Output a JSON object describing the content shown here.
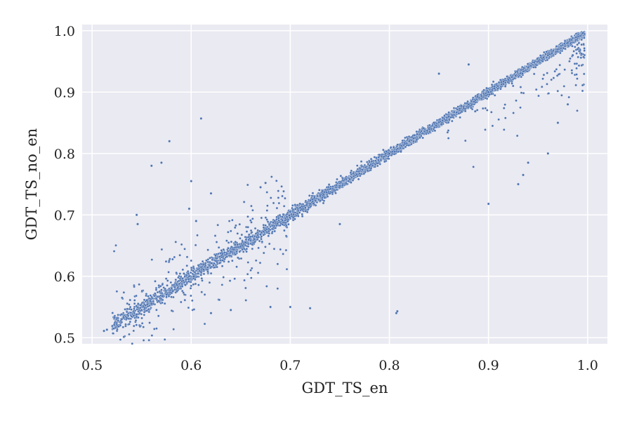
{
  "chart_data": {
    "type": "scatter",
    "title": "",
    "xlabel": "GDT_TS_en",
    "ylabel": "GDT_TS_no_en",
    "xlim": [
      0.49,
      1.02
    ],
    "ylim": [
      0.49,
      1.01
    ],
    "x_ticks": [
      "0.5",
      "0.6",
      "0.7",
      "0.8",
      "0.9",
      "1.0"
    ],
    "y_ticks": [
      "0.5",
      "0.6",
      "0.7",
      "0.8",
      "0.9",
      "1.0"
    ],
    "grid": true,
    "legend": "none",
    "background_color": "#eaeaf2",
    "point_color": "#4c72b0",
    "point_count_estimate": 6000,
    "series": [
      {
        "points": [
          [
            0.512,
            0.511
          ],
          [
            0.515,
            0.513
          ],
          [
            0.53,
            0.53
          ],
          [
            0.535,
            0.532
          ],
          [
            0.545,
            0.538
          ],
          [
            0.55,
            0.545
          ],
          [
            0.56,
            0.555
          ],
          [
            0.575,
            0.57
          ],
          [
            0.598,
            0.6
          ],
          [
            0.61,
            0.607
          ],
          [
            0.625,
            0.625
          ],
          [
            0.64,
            0.64
          ],
          [
            0.655,
            0.655
          ],
          [
            0.67,
            0.668
          ],
          [
            0.7,
            0.705
          ],
          [
            0.71,
            0.712
          ],
          [
            0.72,
            0.718
          ],
          [
            0.74,
            0.735
          ],
          [
            0.76,
            0.758
          ],
          [
            0.78,
            0.78
          ],
          [
            0.8,
            0.8
          ],
          [
            0.82,
            0.82
          ],
          [
            0.84,
            0.84
          ],
          [
            0.86,
            0.86
          ],
          [
            0.88,
            0.88
          ],
          [
            0.9,
            0.9
          ],
          [
            0.92,
            0.92
          ],
          [
            0.94,
            0.94
          ],
          [
            0.96,
            0.96
          ],
          [
            0.98,
            0.98
          ],
          [
            0.995,
            0.996
          ],
          [
            0.56,
            0.78
          ],
          [
            0.57,
            0.785
          ],
          [
            0.578,
            0.82
          ],
          [
            0.61,
            0.857
          ],
          [
            0.6,
            0.755
          ],
          [
            0.545,
            0.7
          ],
          [
            0.546,
            0.685
          ],
          [
            0.808,
            0.543
          ],
          [
            0.807,
            0.54
          ],
          [
            0.72,
            0.548
          ],
          [
            0.7,
            0.55
          ],
          [
            0.9,
            0.718
          ],
          [
            0.93,
            0.75
          ],
          [
            0.935,
            0.765
          ],
          [
            0.94,
            0.785
          ],
          [
            0.85,
            0.93
          ],
          [
            0.88,
            0.945
          ],
          [
            0.67,
            0.745
          ],
          [
            0.675,
            0.752
          ],
          [
            0.598,
            0.71
          ],
          [
            0.605,
            0.69
          ],
          [
            0.62,
            0.735
          ],
          [
            0.75,
            0.685
          ],
          [
            0.62,
            0.54
          ],
          [
            0.64,
            0.545
          ],
          [
            0.68,
            0.55
          ],
          [
            0.96,
            0.8
          ],
          [
            0.97,
            0.85
          ],
          [
            0.98,
            0.88
          ],
          [
            0.985,
            0.96
          ],
          [
            0.99,
            0.97
          ]
        ]
      }
    ]
  }
}
